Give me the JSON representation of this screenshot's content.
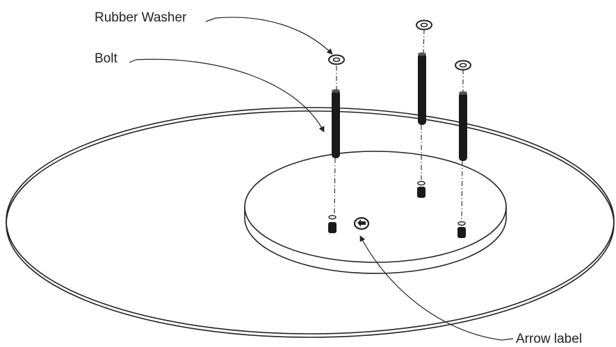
{
  "callouts": {
    "rubber_washer": "Rubber Washer",
    "bolt": "Bolt",
    "arrow_label": "Arrow label"
  },
  "colors": {
    "line": "#222222",
    "bolt_fill": "#1a1a1a",
    "background": "#ffffff"
  }
}
